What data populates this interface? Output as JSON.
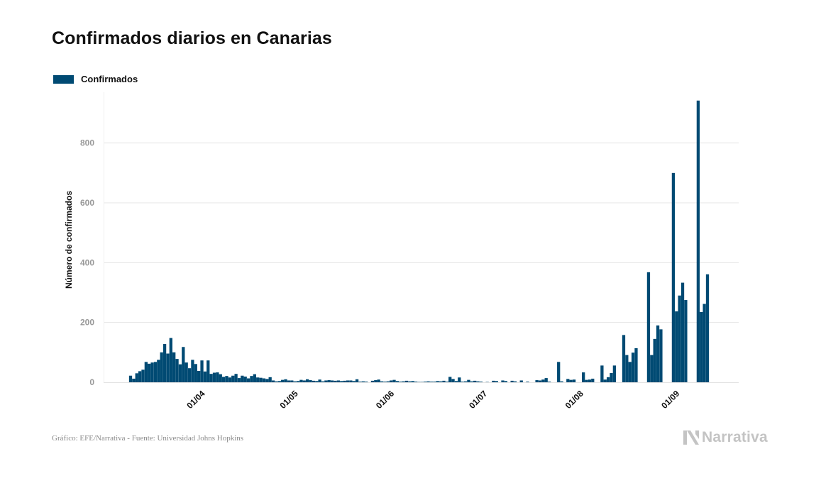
{
  "title": "Confirmados diarios en Canarias",
  "legend": {
    "label": "Confirmados",
    "color": "#004a73"
  },
  "source": "Gráfico: EFE/Narrativa - Fuente: Universidad Johns Hopkins",
  "brand": {
    "name": "Narrativa",
    "icon": "narrativa-logo-icon"
  },
  "colors": {
    "bar": "#004a73",
    "grid": "#e4e4e4",
    "tick": "#999999",
    "xtick": "#111111"
  },
  "chart_data": {
    "type": "bar",
    "title": "Confirmados diarios en Canarias",
    "ylabel": "Número de confirmados",
    "xlabel": "",
    "ylim": [
      0,
      970
    ],
    "yticks": [
      0,
      200,
      400,
      600,
      800
    ],
    "x_tick_labels": [
      "01/04",
      "01/05",
      "01/06",
      "01/07",
      "01/08",
      "01/09"
    ],
    "x_start_date": "2020-03-11",
    "grid": true,
    "legend_position": "top-left",
    "series": [
      {
        "name": "Confirmados",
        "values": [
          22,
          12,
          30,
          37,
          42,
          68,
          62,
          66,
          68,
          75,
          100,
          128,
          96,
          148,
          100,
          78,
          60,
          118,
          66,
          47,
          75,
          61,
          38,
          73,
          36,
          73,
          28,
          32,
          33,
          27,
          18,
          21,
          16,
          22,
          28,
          14,
          22,
          19,
          13,
          21,
          27,
          16,
          15,
          13,
          11,
          17,
          6,
          3,
          4,
          8,
          10,
          6,
          6,
          3,
          4,
          8,
          6,
          10,
          7,
          5,
          4,
          9,
          3,
          6,
          7,
          6,
          5,
          6,
          4,
          5,
          6,
          6,
          4,
          10,
          2,
          3,
          2,
          0,
          5,
          7,
          9,
          3,
          2,
          3,
          6,
          8,
          4,
          2,
          3,
          5,
          3,
          4,
          2,
          1,
          1,
          2,
          3,
          2,
          2,
          4,
          3,
          5,
          2,
          18,
          11,
          4,
          16,
          2,
          3,
          8,
          3,
          5,
          3,
          2,
          0,
          1,
          0,
          5,
          4,
          0,
          6,
          4,
          0,
          5,
          3,
          0,
          6,
          0,
          2,
          0,
          0,
          7,
          6,
          9,
          14,
          2,
          0,
          0,
          68,
          3,
          0,
          11,
          8,
          9,
          0,
          0,
          33,
          8,
          9,
          12,
          0,
          0,
          56,
          9,
          17,
          31,
          56,
          0,
          0,
          158,
          91,
          68,
          99,
          114,
          0,
          0,
          0,
          368,
          91,
          145,
          190,
          177,
          0,
          0,
          0,
          700,
          237,
          290,
          333,
          275,
          0,
          0,
          0,
          942,
          235,
          262,
          361
        ]
      }
    ]
  }
}
